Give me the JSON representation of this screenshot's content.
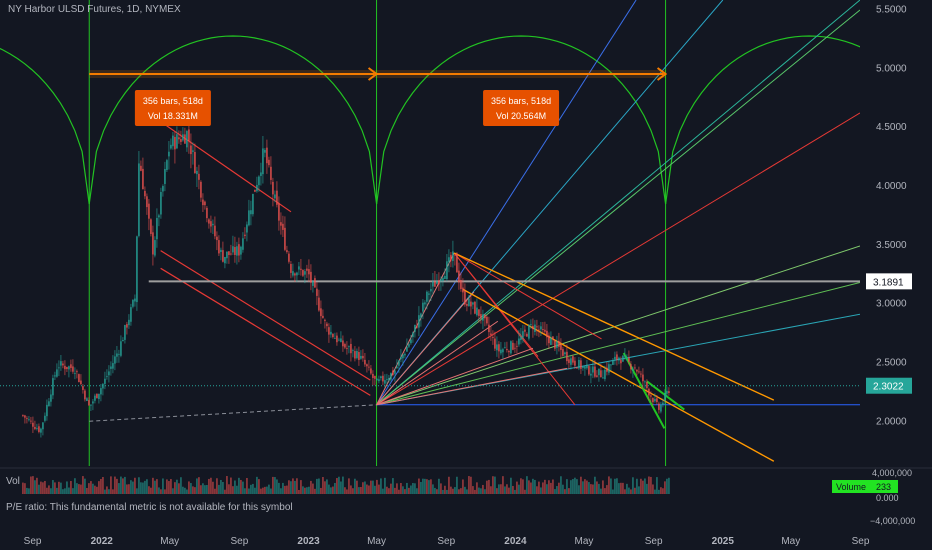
{
  "header": {
    "symbol_title": "NY Harbor ULSD Futures, 1D, NYMEX"
  },
  "volume_pane": {
    "label": "Vol",
    "badge_label": "Volume",
    "badge_value": "233",
    "ticks": [
      "4,000,000",
      "0.000",
      "−4,000,000"
    ]
  },
  "footer_note": "P/E ratio: This fundamental metric is not available for this symbol",
  "colors": {
    "background": "#131722",
    "up": "#26a69a",
    "down": "#ef5350",
    "cycle_arc": "#22c322",
    "measure_arrow": "#f57c00",
    "channel_red": "#e53935",
    "channel_orange": "#ff9800",
    "level_line": "#9e9e9e",
    "fan_blue": "#3a6ee8",
    "baseline": "#2962ff"
  },
  "chart_data": {
    "type": "candlestick",
    "title": "NY Harbor ULSD Futures, 1D, NYMEX",
    "xlabel": "",
    "ylabel": "",
    "x_tick_labels": [
      "Sep",
      "2022",
      "May",
      "Sep",
      "2023",
      "May",
      "Sep",
      "2024",
      "May",
      "Sep",
      "2025",
      "May",
      "Sep"
    ],
    "y_tick_labels": [
      "2.0000",
      "2.5000",
      "3.0000",
      "3.5000",
      "4.0000",
      "4.5000",
      "5.0000",
      "5.5000"
    ],
    "ylim": [
      1.62,
      5.58
    ],
    "grid": false,
    "price_path": [
      [
        "2021-08-15",
        2.05
      ],
      [
        "2021-09-15",
        1.92
      ],
      [
        "2021-10-15",
        2.48
      ],
      [
        "2021-11-15",
        2.45
      ],
      [
        "2021-12-10",
        2.12
      ],
      [
        "2022-01-05",
        2.33
      ],
      [
        "2022-02-01",
        2.62
      ],
      [
        "2022-03-01",
        3.05
      ],
      [
        "2022-03-08",
        4.25
      ],
      [
        "2022-04-01",
        3.45
      ],
      [
        "2022-05-01",
        4.35
      ],
      [
        "2022-06-01",
        4.45
      ],
      [
        "2022-07-01",
        3.85
      ],
      [
        "2022-08-01",
        3.4
      ],
      [
        "2022-09-01",
        3.45
      ],
      [
        "2022-10-15",
        4.3
      ],
      [
        "2022-11-01",
        3.9
      ],
      [
        "2022-12-01",
        3.3
      ],
      [
        "2023-01-01",
        3.25
      ],
      [
        "2023-02-01",
        2.8
      ],
      [
        "2023-03-01",
        2.65
      ],
      [
        "2023-04-01",
        2.55
      ],
      [
        "2023-05-01",
        2.32
      ],
      [
        "2023-06-01",
        2.42
      ],
      [
        "2023-07-01",
        2.7
      ],
      [
        "2023-08-01",
        3.1
      ],
      [
        "2023-09-15",
        3.4
      ],
      [
        "2023-10-01",
        3.05
      ],
      [
        "2023-11-01",
        2.9
      ],
      [
        "2023-12-01",
        2.6
      ],
      [
        "2024-01-01",
        2.65
      ],
      [
        "2024-02-01",
        2.82
      ],
      [
        "2024-03-01",
        2.7
      ],
      [
        "2024-04-01",
        2.55
      ],
      [
        "2024-05-01",
        2.45
      ],
      [
        "2024-06-01",
        2.4
      ],
      [
        "2024-07-01",
        2.55
      ],
      [
        "2024-08-01",
        2.45
      ],
      [
        "2024-09-10",
        2.1
      ],
      [
        "2024-10-01",
        2.3
      ]
    ],
    "current_price": 2.3022,
    "current_price_label": "2.3022",
    "horizontal_level": 3.1891,
    "horizontal_level_label": "3.1891",
    "annotations": [
      {
        "line1": "356 bars, 518d",
        "line2": "Vol 18.331M"
      },
      {
        "line1": "356 bars, 518d",
        "line2": "Vol 20.564M"
      }
    ]
  }
}
